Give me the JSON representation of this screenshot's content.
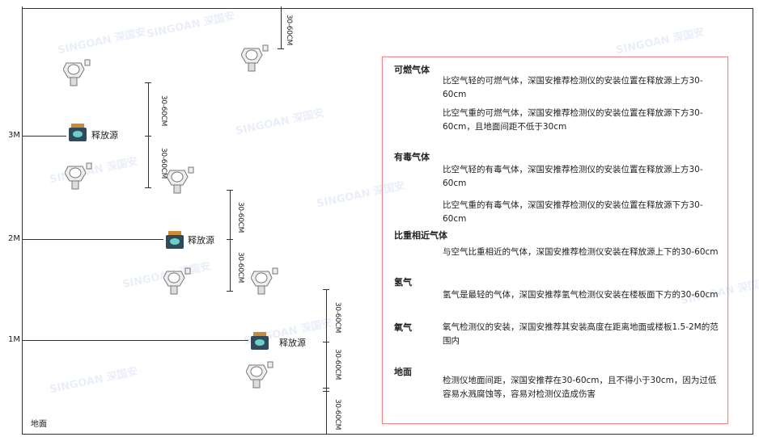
{
  "levels": [
    "3M",
    "2M",
    "1M"
  ],
  "floor_label": "地面",
  "source_label": "释放源",
  "dimension_label": "30-60CM",
  "watermark": "SINGOAN 深国安",
  "panel": {
    "sections": [
      {
        "heading": "可燃气体",
        "paragraphs": [
          "比空气轻的可燃气体，深国安推荐检测仪的安装位置在释放源上方30-60cm",
          "比空气重的可燃气体，深国安推荐检测仪的安装位置在释放源下方30-60cm，且地面间距不低于30cm"
        ]
      },
      {
        "heading": "有毒气体",
        "paragraphs": [
          "比空气轻的有毒气体，深国安推荐检测仪的安装位置在释放源上方30-60cm",
          "比空气重的有毒气体，深国安推荐检测仪的安装位置在释放源下方30-60cm"
        ]
      },
      {
        "heading": "比重相近气体",
        "paragraphs": [
          "与空气比重相近的气体，深国安推荐检测仪安装在释放源上下的30-60cm"
        ]
      },
      {
        "heading": "氢气",
        "paragraphs": [
          "氢气是最轻的气体，深国安推荐氢气检测仪安装在楼板面下方的30-60cm"
        ]
      },
      {
        "heading": "氧气",
        "paragraphs": [
          "氧气检测仪的安装，深国安推荐其安装高度在距离地面或楼板1.5-2M的范围内"
        ]
      },
      {
        "heading": "地面",
        "paragraphs": [
          "检测仪地面间距，深国安推荐在30-60cm，且不得小于30cm，因为过低容易水溅腐蚀等，容易对检测仪造成伤害"
        ]
      }
    ]
  },
  "colors": {
    "panel_border": "#e88888",
    "line": "#333333",
    "source_body": "#2f4a5a",
    "source_cap": "#c98a3a"
  }
}
